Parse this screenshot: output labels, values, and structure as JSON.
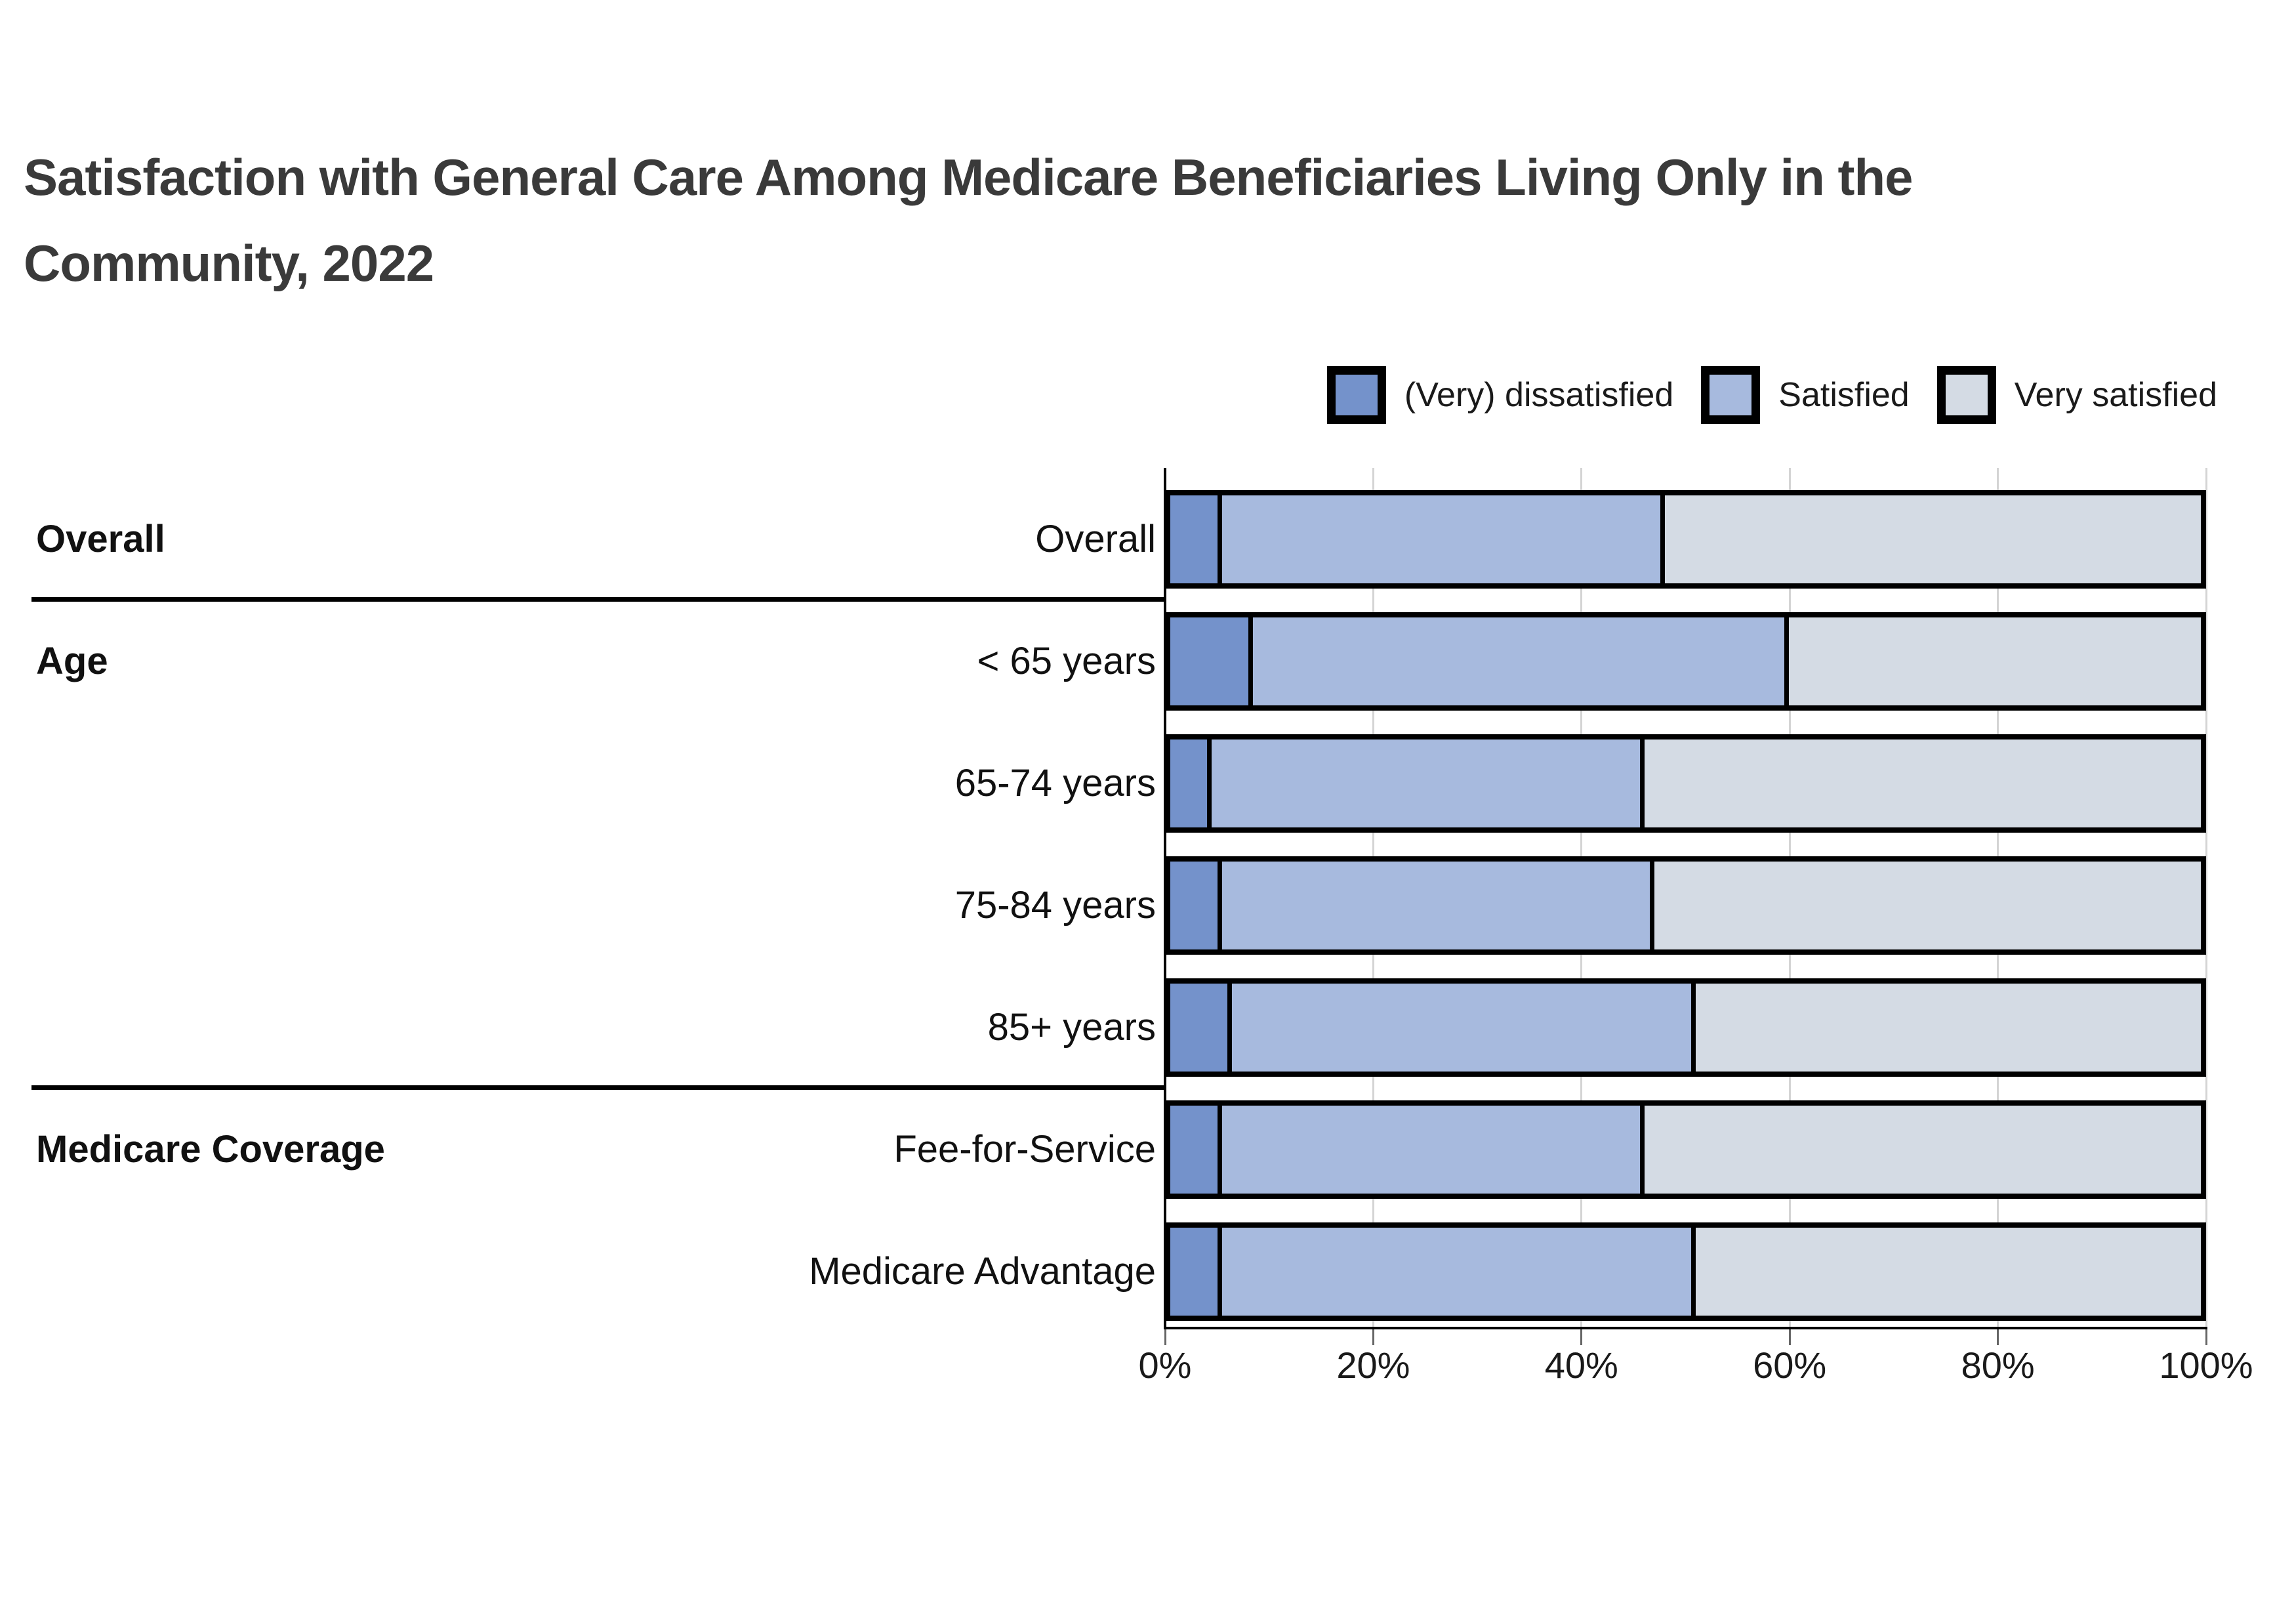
{
  "title": {
    "full": "Satisfaction with General Care Among Medicare Beneficiaries Living Only in the Community, 2022",
    "line1": "Satisfaction with General Care Among Medicare Beneficiaries Living Only in the",
    "line2": "Community, 2022"
  },
  "legend": [
    {
      "label": "(Very) dissatisfied",
      "color": "#7492cb"
    },
    {
      "label": "Satisfied",
      "color": "#a7bade"
    },
    {
      "label": "Very satisfied",
      "color": "#d4dbe4"
    }
  ],
  "chart_data": {
    "type": "bar",
    "orientation": "horizontal",
    "stacked": true,
    "title": "Satisfaction with General Care Among Medicare Beneficiaries Living Only in the Community, 2022",
    "categories": [
      "Overall",
      "< 65 years",
      "65-74 years",
      "75-84 years",
      "85+ years",
      "Fee-for-Service",
      "Medicare Advantage"
    ],
    "groups": [
      {
        "label": "Overall",
        "start": 0,
        "count": 1
      },
      {
        "label": "Age",
        "start": 1,
        "count": 4
      },
      {
        "label": "Medicare Coverage",
        "start": 5,
        "count": 2
      }
    ],
    "series": [
      {
        "name": "(Very) dissatisfied",
        "color": "#7492cb",
        "values": [
          5,
          8,
          4,
          5,
          6,
          5,
          5
        ]
      },
      {
        "name": "Satisfied",
        "color": "#a7bade",
        "values": [
          43,
          52,
          42,
          42,
          45,
          41,
          46
        ]
      },
      {
        "name": "Very satisfied",
        "color": "#d4dbe4",
        "values": [
          52,
          40,
          54,
          53,
          49,
          54,
          49
        ]
      }
    ],
    "xlim": [
      0,
      100
    ],
    "x_ticks": [
      0,
      20,
      40,
      60,
      80,
      100
    ],
    "x_tick_labels": [
      "0%",
      "20%",
      "40%",
      "60%",
      "80%",
      "100%"
    ],
    "grid": true,
    "legend_position": "top-right",
    "units": "%"
  },
  "colors": {
    "title": "#3a3a3a",
    "text": "#1a1a1a",
    "axis": "#000000",
    "gridline": "#d4d4d4",
    "background": "#ffffff"
  }
}
